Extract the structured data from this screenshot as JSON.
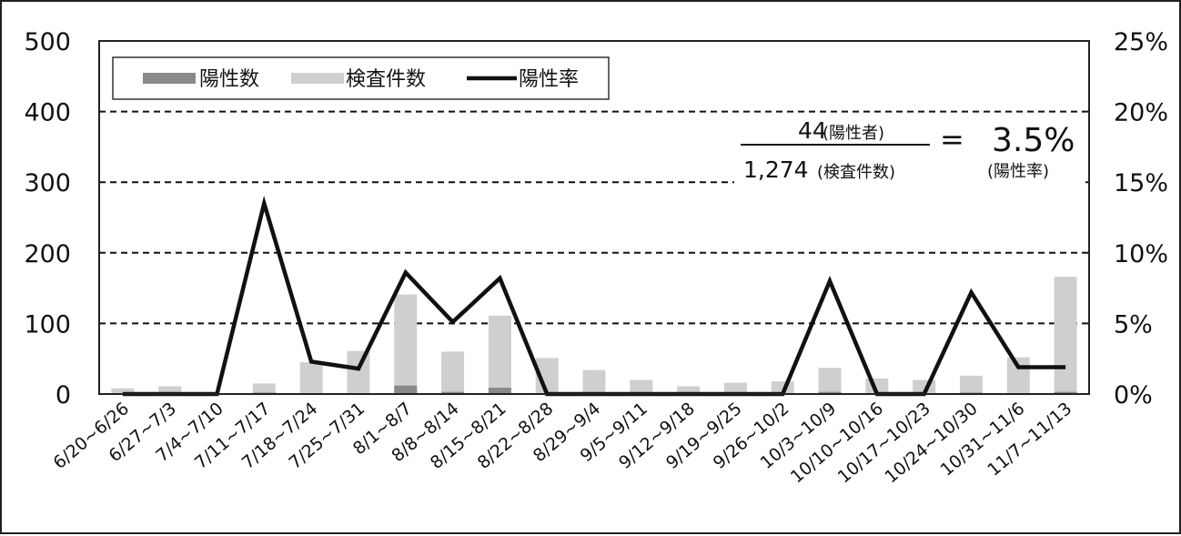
{
  "chart_data": {
    "type": "bar",
    "categories": [
      "6/20~6/26",
      "6/27~7/3",
      "7/4~7/10",
      "7/11~7/17",
      "7/18~7/24",
      "7/25~7/31",
      "8/1~8/7",
      "8/8~8/14",
      "8/15~8/21",
      "8/22~8/28",
      "8/29~9/4",
      "9/5~9/11",
      "9/12~9/18",
      "9/19~9/25",
      "9/26~10/2",
      "10/3~10/9",
      "10/10~10/16",
      "10/17~10/23",
      "10/24~10/30",
      "10/31~11/6",
      "11/7~11/13"
    ],
    "series": [
      {
        "name": "陽性数",
        "type": "bar",
        "axis": "left",
        "values": [
          0,
          0,
          0,
          2,
          1,
          1,
          12,
          3,
          9,
          0,
          0,
          0,
          0,
          0,
          0,
          3,
          0,
          0,
          2,
          1,
          3
        ]
      },
      {
        "name": "検査件数",
        "type": "bar",
        "axis": "left",
        "values": [
          8,
          11,
          0,
          15,
          45,
          61,
          141,
          60,
          111,
          51,
          34,
          20,
          11,
          16,
          18,
          37,
          22,
          20,
          26,
          52,
          166
        ]
      },
      {
        "name": "陽性率",
        "type": "line",
        "axis": "right",
        "values": [
          0,
          0,
          0,
          13.5,
          2.3,
          1.8,
          8.6,
          5.1,
          8.2,
          0,
          0,
          0,
          0,
          0,
          0,
          8.0,
          0,
          0,
          7.2,
          1.9,
          1.9
        ]
      }
    ],
    "ylim_left": [
      0,
      500
    ],
    "ylim_right": [
      0,
      25
    ],
    "yticks_left": [
      "0",
      "100",
      "200",
      "300",
      "400",
      "500"
    ],
    "yticks_right": [
      "0%",
      "5%",
      "10%",
      "15%",
      "20%",
      "25%"
    ],
    "grid": "horizontal-dashed",
    "legend_position": "top-left",
    "annotation": {
      "numerator_value": "44",
      "numerator_label": "(陽性者)",
      "denominator_value": "1,274",
      "denominator_label": "(検査件数)",
      "equals": "=",
      "result_value": "3.5%",
      "result_label": "(陽性率)"
    }
  }
}
